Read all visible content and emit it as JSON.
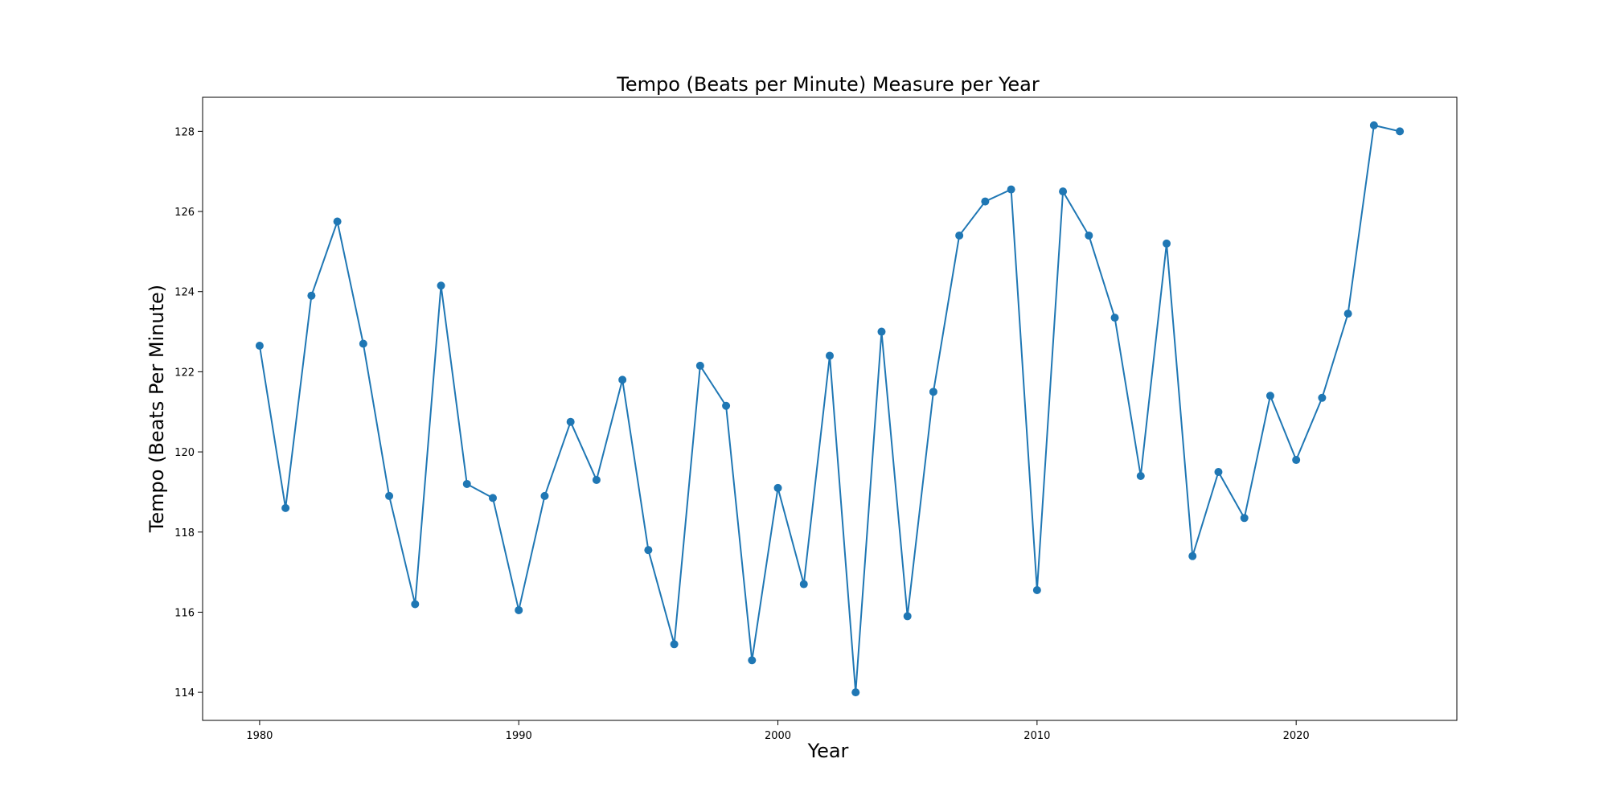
{
  "chart_data": {
    "type": "line",
    "title": "Tempo (Beats per Minute) Measure per Year",
    "xlabel": "Year",
    "ylabel": "Tempo (Beats Per Minute)",
    "xlim": [
      1977.8,
      2026.2
    ],
    "ylim": [
      113.3,
      128.85
    ],
    "xticks": [
      1980,
      1990,
      2000,
      2010,
      2020
    ],
    "yticks": [
      114,
      116,
      118,
      120,
      122,
      124,
      126,
      128
    ],
    "grid": false,
    "line_color": "#1f77b4",
    "marker": "circle",
    "series": [
      {
        "x": [
          1980,
          1981,
          1982,
          1983,
          1984,
          1985,
          1986,
          1987,
          1988,
          1989,
          1990,
          1991,
          1992,
          1993,
          1994,
          1995,
          1996,
          1997,
          1998,
          1999,
          2000,
          2001,
          2002,
          2003,
          2004,
          2005,
          2006,
          2007,
          2008,
          2009,
          2010,
          2011,
          2012,
          2013,
          2014,
          2015,
          2016,
          2017,
          2018,
          2019,
          2020,
          2021,
          2022,
          2023,
          2024
        ],
        "values": [
          122.65,
          118.6,
          123.9,
          125.75,
          122.7,
          118.9,
          116.2,
          124.15,
          119.2,
          118.85,
          116.05,
          118.9,
          120.75,
          119.3,
          121.8,
          117.55,
          115.2,
          122.15,
          121.15,
          114.8,
          119.1,
          116.7,
          122.4,
          114.0,
          123.0,
          115.9,
          121.5,
          125.4,
          126.25,
          126.55,
          116.55,
          126.5,
          125.4,
          123.35,
          119.4,
          125.2,
          117.4,
          119.5,
          118.35,
          121.4,
          119.8,
          121.35,
          123.45,
          128.15,
          128.0
        ]
      }
    ]
  }
}
